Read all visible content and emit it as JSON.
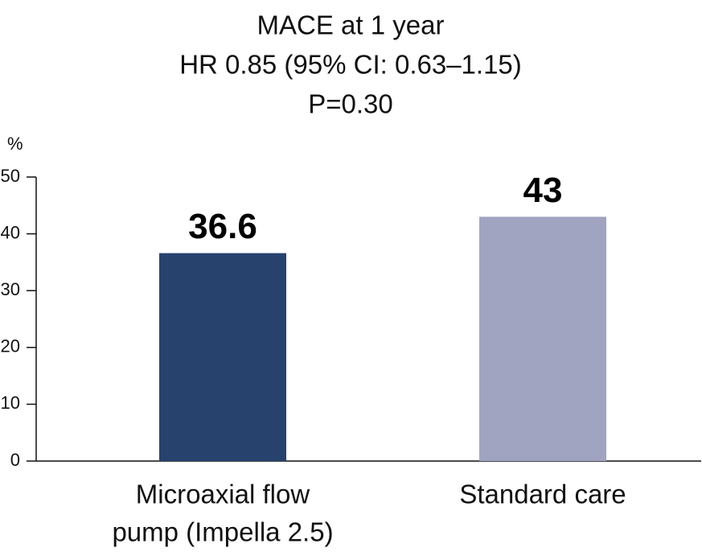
{
  "chart_data": {
    "type": "bar",
    "title_lines": [
      "MACE at 1 year",
      "HR 0.85 (95% CI: 0.63–1.15)",
      "P=0.30"
    ],
    "y_unit": "%",
    "ylim": [
      0,
      50
    ],
    "yticks": [
      0,
      10,
      20,
      30,
      40,
      50
    ],
    "categories": [
      {
        "lines": [
          "Microaxial flow",
          "pump (Impella 2.5)"
        ]
      },
      {
        "lines": [
          "Standard care"
        ]
      }
    ],
    "values": [
      36.6,
      43
    ],
    "value_labels": [
      "36.6",
      "43"
    ],
    "colors": [
      "#28426e",
      "#a0a4c0"
    ],
    "grid": false,
    "legend": "none"
  }
}
